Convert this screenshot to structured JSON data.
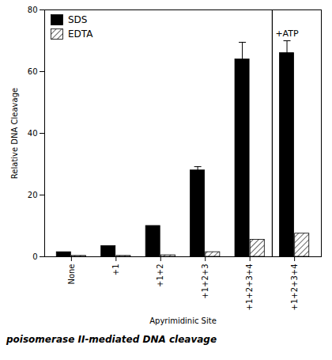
{
  "chart_data": {
    "type": "bar",
    "categories": [
      "None",
      "+1",
      "+1+2",
      "+1+2+3",
      "+1+2+3+4",
      "+1+2+3+4"
    ],
    "series": [
      {
        "name": "SDS",
        "color": "#000000",
        "values": [
          1.5,
          3.5,
          10.0,
          28.0,
          64.0,
          66.0
        ],
        "errors": [
          0.0,
          0.0,
          0.0,
          1.2,
          5.5,
          4.0
        ]
      },
      {
        "name": "EDTA",
        "color": "#ffffff",
        "values": [
          0.3,
          0.3,
          0.5,
          1.5,
          5.5,
          7.5
        ]
      }
    ],
    "ylabel": "Relative DNA Cleavage",
    "xlabel": "Apyrimidinic Site",
    "ylim": [
      0,
      80
    ],
    "yticks": [
      0,
      20,
      40,
      60,
      80
    ],
    "annotation": "+ATP",
    "caption": "poisomerase II-mediated DNA cleavage",
    "legend": "upper left",
    "grid": false
  }
}
